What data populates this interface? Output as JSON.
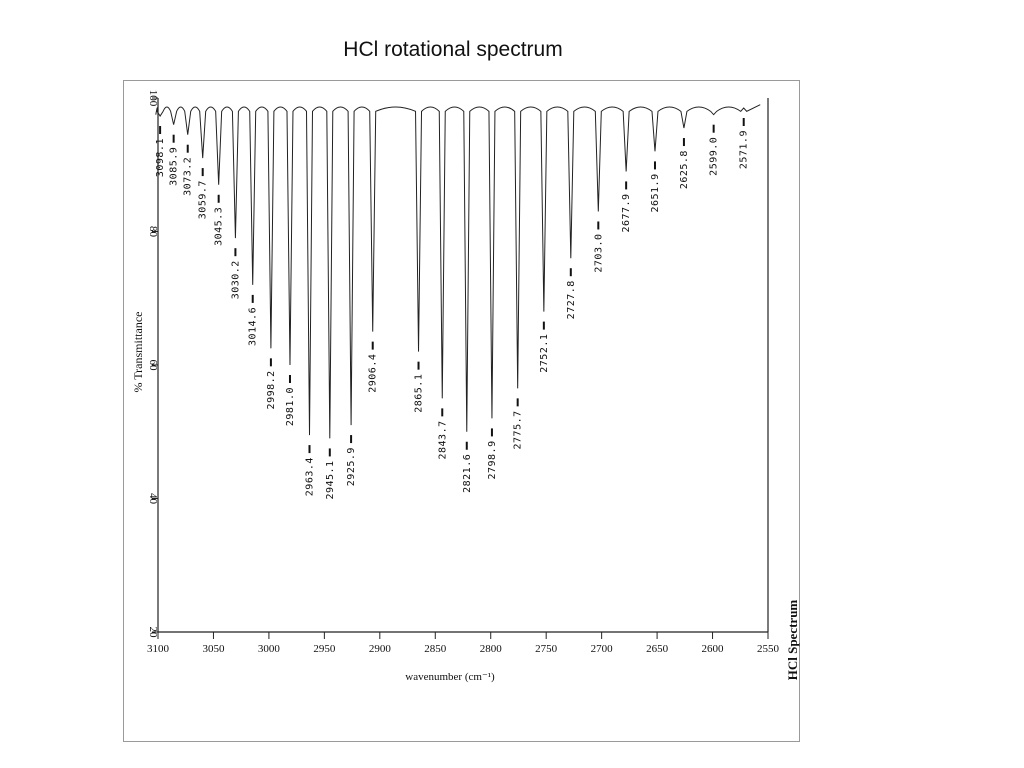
{
  "slide": {
    "title": "HCl rotational spectrum"
  },
  "chart_data": {
    "type": "line",
    "xlabel": "wavenumber (cm⁻¹)",
    "ylabel": "% Transmittance",
    "side_label": "HCl Spectrum",
    "xlim": [
      3100,
      2550
    ],
    "ylim": [
      20,
      100
    ],
    "x_ticks": [
      3100,
      3050,
      3000,
      2950,
      2900,
      2850,
      2800,
      2750,
      2700,
      2650,
      2600,
      2550
    ],
    "y_ticks": [
      20,
      40,
      60,
      80,
      100
    ],
    "grid": false,
    "baseline": 99,
    "peaks": [
      {
        "x": 3098.1,
        "y": 97.3,
        "label": "3098.1"
      },
      {
        "x": 3085.9,
        "y": 96.0,
        "label": "3085.9"
      },
      {
        "x": 3073.2,
        "y": 94.5,
        "label": "3073.2"
      },
      {
        "x": 3059.7,
        "y": 91.0,
        "label": "3059.7"
      },
      {
        "x": 3045.3,
        "y": 87.0,
        "label": "3045.3"
      },
      {
        "x": 3030.2,
        "y": 79.0,
        "label": "3030.2"
      },
      {
        "x": 3014.6,
        "y": 72.0,
        "label": "3014.6"
      },
      {
        "x": 2998.2,
        "y": 62.5,
        "label": "2998.2"
      },
      {
        "x": 2981.0,
        "y": 60.0,
        "label": "2981.0"
      },
      {
        "x": 2963.4,
        "y": 49.5,
        "label": "2963.4"
      },
      {
        "x": 2945.1,
        "y": 49.0,
        "label": "2945.1"
      },
      {
        "x": 2925.9,
        "y": 51.0,
        "label": "2925.9"
      },
      {
        "x": 2906.4,
        "y": 65.0,
        "label": "2906.4"
      },
      {
        "x": 2865.1,
        "y": 62.0,
        "label": "2865.1"
      },
      {
        "x": 2843.7,
        "y": 55.0,
        "label": "2843.7"
      },
      {
        "x": 2821.6,
        "y": 50.0,
        "label": "2821.6"
      },
      {
        "x": 2798.9,
        "y": 52.0,
        "label": "2798.9"
      },
      {
        "x": 2775.7,
        "y": 56.5,
        "label": "2775.7"
      },
      {
        "x": 2752.1,
        "y": 68.0,
        "label": "2752.1"
      },
      {
        "x": 2727.8,
        "y": 76.0,
        "label": "2727.8"
      },
      {
        "x": 2703.0,
        "y": 83.0,
        "label": "2703.0"
      },
      {
        "x": 2677.9,
        "y": 89.0,
        "label": "2677.9"
      },
      {
        "x": 2651.9,
        "y": 92.0,
        "label": "2651.9"
      },
      {
        "x": 2625.8,
        "y": 95.5,
        "label": "2625.8"
      },
      {
        "x": 2599.0,
        "y": 97.5,
        "label": "2599.0"
      },
      {
        "x": 2571.9,
        "y": 98.5,
        "label": "2571.9"
      }
    ]
  }
}
